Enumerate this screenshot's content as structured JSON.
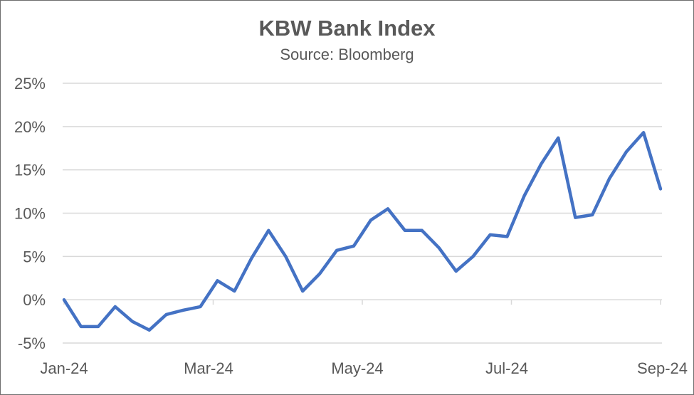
{
  "chart_data": {
    "type": "line",
    "title": "KBW Bank Index",
    "subtitle": "Source: Bloomberg",
    "xlabel": "",
    "ylabel": "",
    "x_tick_labels": [
      "Jan-24",
      "Mar-24",
      "May-24",
      "Jul-24",
      "Sep-24"
    ],
    "y_tick_labels": [
      "-5%",
      "0%",
      "5%",
      "10%",
      "15%",
      "20%",
      "25%"
    ],
    "ylim": [
      -5,
      25
    ],
    "y_ticks": [
      -5,
      0,
      5,
      10,
      15,
      20,
      25
    ],
    "grid": true,
    "legend": "none",
    "line_color": "#4472C4",
    "series": [
      {
        "values": [
          0.0,
          -3.1,
          -3.1,
          -0.8,
          -2.5,
          -3.5,
          -1.7,
          -1.2,
          -0.8,
          2.2,
          1.0,
          4.8,
          8.0,
          5.0,
          1.0,
          3.0,
          5.7,
          6.2,
          9.2,
          10.5,
          8.0,
          8.0,
          6.0,
          3.3,
          5.0,
          7.5,
          7.3,
          12.0,
          15.7,
          18.7,
          9.5,
          9.8,
          14.0,
          17.1,
          19.3,
          12.8
        ]
      }
    ]
  }
}
